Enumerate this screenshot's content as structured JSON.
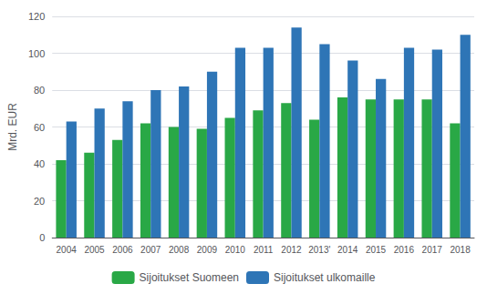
{
  "chart_data": {
    "type": "bar",
    "categories": [
      "2004",
      "2005",
      "2006",
      "2007",
      "2008",
      "2009",
      "2010",
      "2011",
      "2012",
      "2013'",
      "2014",
      "2015",
      "2016",
      "2017",
      "2018"
    ],
    "series": [
      {
        "name": "Sijoitukset Suomeen",
        "color": "#29a846",
        "values": [
          42,
          46,
          53,
          62,
          60,
          59,
          65,
          69,
          73,
          64,
          76,
          75,
          75,
          75,
          62
        ]
      },
      {
        "name": "Sijoitukset ulkomaille",
        "color": "#2e75b6",
        "values": [
          63,
          70,
          74,
          80,
          82,
          90,
          103,
          103,
          114,
          105,
          96,
          86,
          103,
          102,
          110
        ]
      }
    ],
    "ylabel": "Mrd. EUR",
    "ylim": [
      0,
      120
    ],
    "yticks": [
      0,
      20,
      40,
      60,
      80,
      100,
      120
    ],
    "grid": true,
    "legend": "bottom"
  }
}
